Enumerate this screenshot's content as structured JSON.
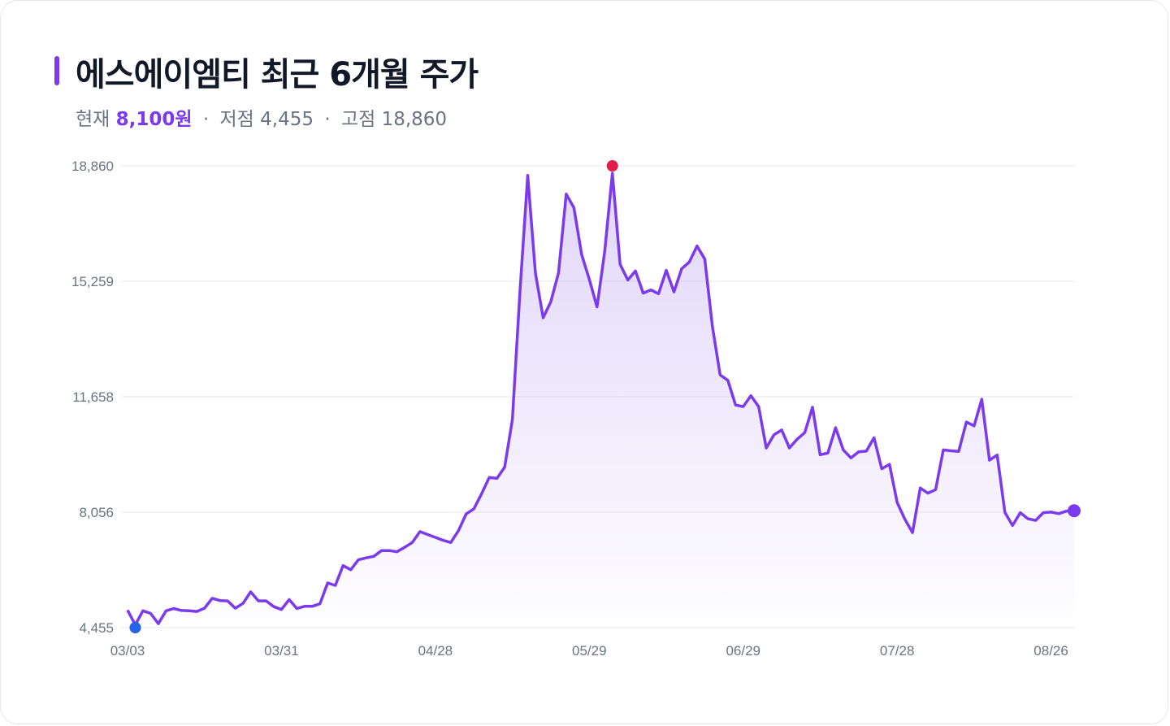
{
  "colors": {
    "accent": "#7c3aed",
    "line": "#7c3aed",
    "fill_top": "#c9b5f5",
    "grid": "#e5e7eb",
    "low_marker": "#2563eb",
    "high_marker": "#e11d48",
    "text_dark": "#111827",
    "text_muted": "#6b7280"
  },
  "header": {
    "title": "에스에이엠티 최근 6개월 주가",
    "current_label": "현재",
    "current_value": "8,100원",
    "sep1": "·",
    "low_label": "저점",
    "low_value": "4,455",
    "sep2": "·",
    "high_label": "고점",
    "high_value": "18,860"
  },
  "chart_data": {
    "type": "area",
    "title": "에스에이엠티 최근 6개월 주가",
    "xlabel": "",
    "ylabel": "",
    "ylim": [
      4455,
      18860
    ],
    "yticks": [
      4455,
      8056,
      11658,
      15259,
      18860
    ],
    "ytick_labels": [
      "4,455",
      "8,056",
      "11,658",
      "15,259",
      "18,860"
    ],
    "xtick_labels": [
      "03/03",
      "03/31",
      "04/28",
      "05/29",
      "06/29",
      "07/28",
      "08/26"
    ],
    "xtick_index": [
      0,
      20,
      40,
      60,
      80,
      100,
      120
    ],
    "grid": true,
    "markers": {
      "low": {
        "index": 1,
        "value": 4455
      },
      "high": {
        "index": 63,
        "value": 18860
      },
      "current": {
        "index": 123,
        "value": 8100
      }
    },
    "series": [
      {
        "values": [
          5000,
          4540,
          4980,
          4900,
          4580,
          4980,
          5050,
          4990,
          4980,
          4960,
          5060,
          5370,
          5300,
          5290,
          5060,
          5210,
          5570,
          5290,
          5290,
          5110,
          5020,
          5330,
          5050,
          5120,
          5120,
          5200,
          5850,
          5770,
          6390,
          6260,
          6570,
          6630,
          6680,
          6860,
          6860,
          6820,
          6960,
          7110,
          7450,
          7360,
          7270,
          7180,
          7110,
          7480,
          8000,
          8160,
          8630,
          9140,
          9110,
          9460,
          10940,
          14960,
          18560,
          15510,
          14120,
          14620,
          15520,
          17980,
          17560,
          16100,
          15320,
          14460,
          16180,
          18630,
          15790,
          15300,
          15580,
          14890,
          14990,
          14870,
          15600,
          14930,
          15650,
          15860,
          16360,
          15950,
          13850,
          12340,
          12170,
          11400,
          11350,
          11690,
          11350,
          10060,
          10470,
          10620,
          10060,
          10330,
          10540,
          11330,
          9850,
          9900,
          10690,
          10000,
          9750,
          9940,
          9960,
          10380,
          9410,
          9550,
          8360,
          7840,
          7420,
          8810,
          8650,
          8760,
          10000,
          9970,
          9950,
          10870,
          10750,
          11580,
          9680,
          9840,
          8050,
          7640,
          8040,
          7850,
          7800,
          8040,
          8060,
          8010,
          8090,
          8100
        ]
      }
    ]
  }
}
